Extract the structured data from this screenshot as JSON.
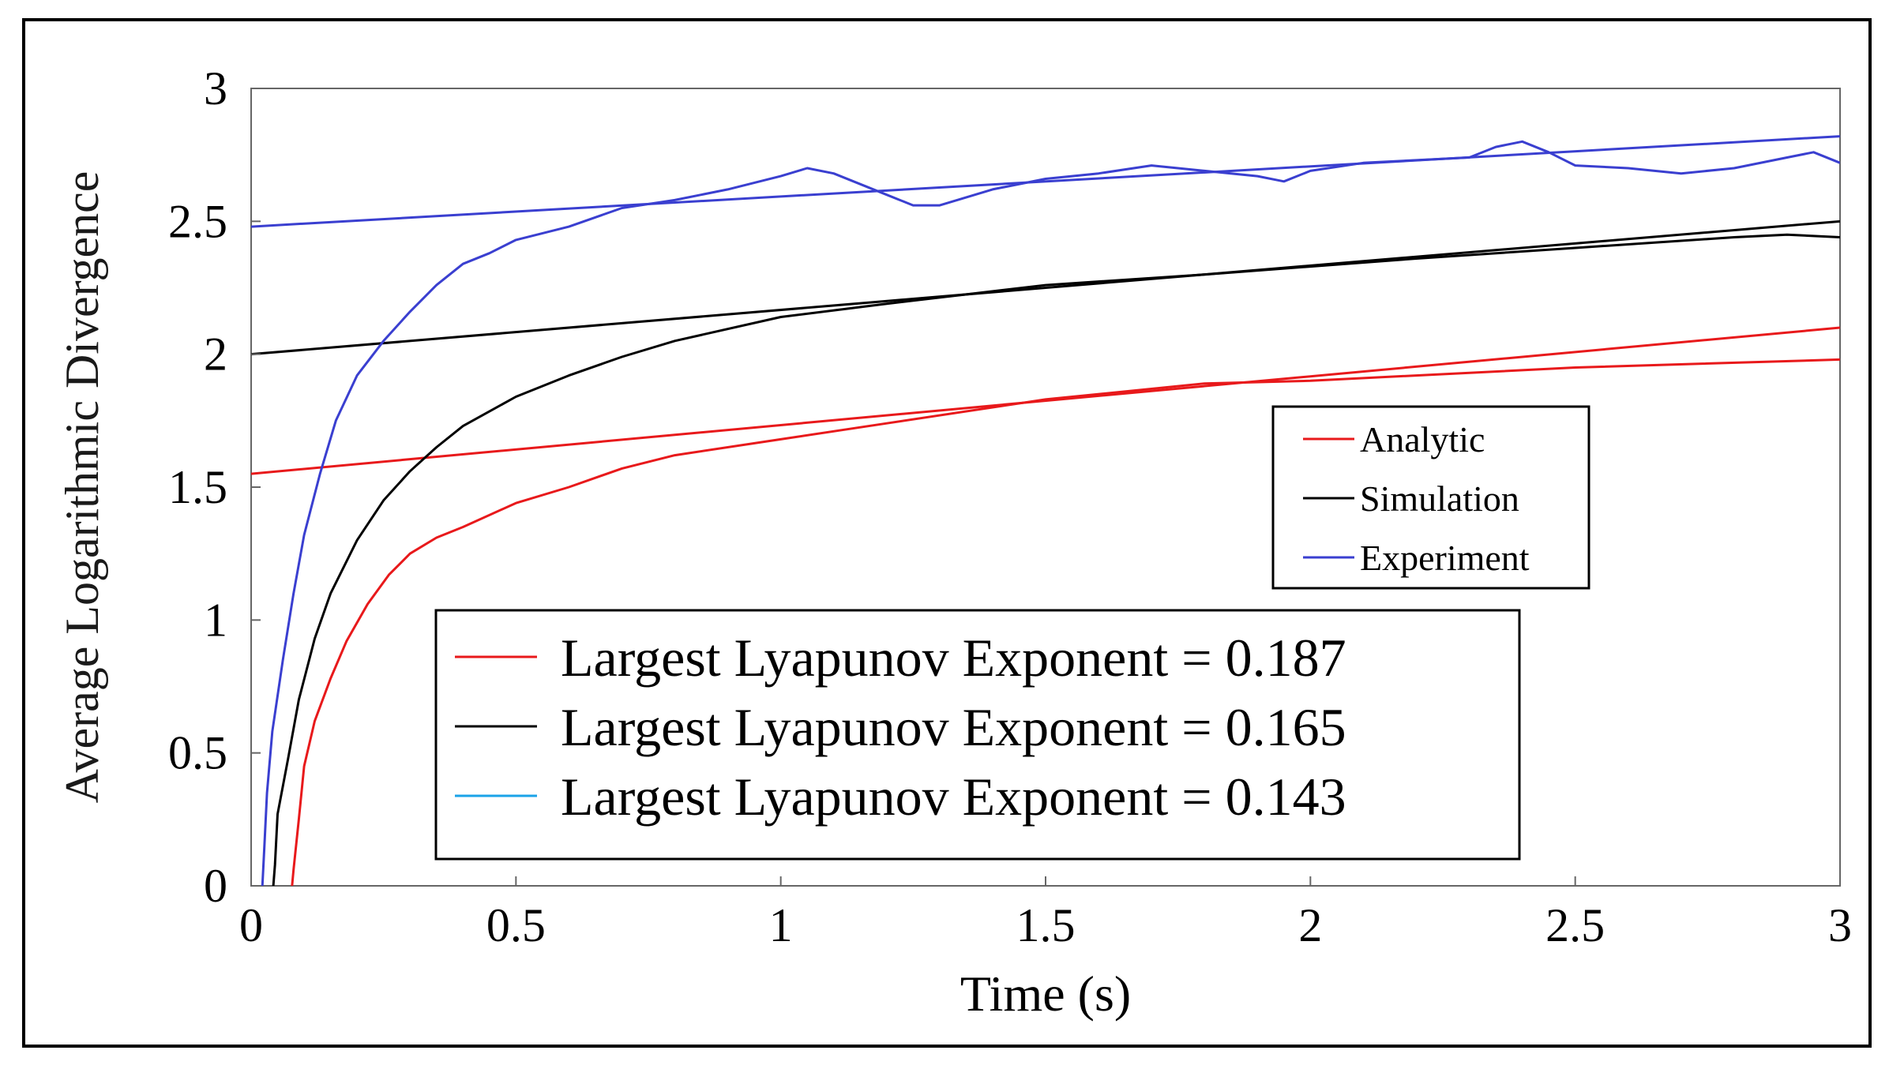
{
  "chart_data": {
    "type": "line",
    "title": "",
    "xlabel": "Time (s)",
    "ylabel": "Average Logarithmic Divergence",
    "xlim": [
      0,
      3
    ],
    "ylim": [
      0,
      3
    ],
    "x_ticks": [
      "0",
      "0.5",
      "1",
      "1.5",
      "2",
      "2.5",
      "3"
    ],
    "y_ticks": [
      "0",
      "0.5",
      "1",
      "1.5",
      "2",
      "2.5",
      "3"
    ],
    "grid": false,
    "series": [
      {
        "name": "Analytic",
        "color": "#e8191b",
        "points": [
          [
            0.075,
            -0.05
          ],
          [
            0.08,
            0.06
          ],
          [
            0.09,
            0.25
          ],
          [
            0.1,
            0.45
          ],
          [
            0.12,
            0.62
          ],
          [
            0.15,
            0.78
          ],
          [
            0.18,
            0.92
          ],
          [
            0.22,
            1.06
          ],
          [
            0.26,
            1.17
          ],
          [
            0.3,
            1.25
          ],
          [
            0.35,
            1.31
          ],
          [
            0.4,
            1.35
          ],
          [
            0.5,
            1.44
          ],
          [
            0.6,
            1.5
          ],
          [
            0.7,
            1.57
          ],
          [
            0.8,
            1.62
          ],
          [
            1.0,
            1.68
          ],
          [
            1.2,
            1.74
          ],
          [
            1.5,
            1.83
          ],
          [
            1.8,
            1.89
          ],
          [
            2.0,
            1.9
          ],
          [
            2.5,
            1.95
          ],
          [
            3.0,
            1.98
          ]
        ]
      },
      {
        "name": "Simulation",
        "color": "#000000",
        "points": [
          [
            0.04,
            -0.05
          ],
          [
            0.045,
            0.08
          ],
          [
            0.05,
            0.27
          ],
          [
            0.07,
            0.48
          ],
          [
            0.09,
            0.7
          ],
          [
            0.12,
            0.93
          ],
          [
            0.15,
            1.1
          ],
          [
            0.2,
            1.3
          ],
          [
            0.25,
            1.45
          ],
          [
            0.3,
            1.56
          ],
          [
            0.35,
            1.65
          ],
          [
            0.4,
            1.73
          ],
          [
            0.5,
            1.84
          ],
          [
            0.6,
            1.92
          ],
          [
            0.7,
            1.99
          ],
          [
            0.8,
            2.05
          ],
          [
            1.0,
            2.14
          ],
          [
            1.2,
            2.19
          ],
          [
            1.5,
            2.26
          ],
          [
            1.8,
            2.3
          ],
          [
            2.0,
            2.33
          ],
          [
            2.2,
            2.36
          ],
          [
            2.5,
            2.4
          ],
          [
            2.8,
            2.44
          ],
          [
            2.9,
            2.45
          ],
          [
            3.0,
            2.44
          ]
        ]
      },
      {
        "name": "Experiment",
        "color": "#3a3fd0",
        "points": [
          [
            0.02,
            -0.05
          ],
          [
            0.025,
            0.15
          ],
          [
            0.03,
            0.35
          ],
          [
            0.04,
            0.58
          ],
          [
            0.06,
            0.85
          ],
          [
            0.08,
            1.1
          ],
          [
            0.1,
            1.32
          ],
          [
            0.13,
            1.55
          ],
          [
            0.16,
            1.75
          ],
          [
            0.2,
            1.92
          ],
          [
            0.25,
            2.05
          ],
          [
            0.3,
            2.16
          ],
          [
            0.35,
            2.26
          ],
          [
            0.4,
            2.34
          ],
          [
            0.45,
            2.38
          ],
          [
            0.5,
            2.43
          ],
          [
            0.6,
            2.48
          ],
          [
            0.7,
            2.55
          ],
          [
            0.8,
            2.58
          ],
          [
            0.9,
            2.62
          ],
          [
            1.0,
            2.67
          ],
          [
            1.05,
            2.7
          ],
          [
            1.1,
            2.68
          ],
          [
            1.2,
            2.6
          ],
          [
            1.25,
            2.56
          ],
          [
            1.3,
            2.56
          ],
          [
            1.4,
            2.62
          ],
          [
            1.5,
            2.66
          ],
          [
            1.6,
            2.68
          ],
          [
            1.7,
            2.71
          ],
          [
            1.8,
            2.69
          ],
          [
            1.9,
            2.67
          ],
          [
            1.95,
            2.65
          ],
          [
            2.0,
            2.69
          ],
          [
            2.1,
            2.72
          ],
          [
            2.2,
            2.73
          ],
          [
            2.3,
            2.74
          ],
          [
            2.35,
            2.78
          ],
          [
            2.4,
            2.8
          ],
          [
            2.45,
            2.76
          ],
          [
            2.5,
            2.71
          ],
          [
            2.6,
            2.7
          ],
          [
            2.7,
            2.68
          ],
          [
            2.8,
            2.7
          ],
          [
            2.9,
            2.74
          ],
          [
            2.95,
            2.76
          ],
          [
            3.0,
            2.72
          ]
        ]
      }
    ],
    "fit_lines": [
      {
        "color": "#e8191b",
        "x": [
          0,
          3
        ],
        "y": [
          1.55,
          2.1
        ]
      },
      {
        "color": "#000000",
        "x": [
          0,
          3
        ],
        "y": [
          2.0,
          2.5
        ]
      },
      {
        "color": "#3a3fd0",
        "x": [
          0,
          3
        ],
        "y": [
          2.48,
          2.82
        ]
      }
    ],
    "legend_series": {
      "position": "center-right",
      "entries": [
        {
          "label": "Analytic",
          "color": "#e8191b"
        },
        {
          "label": "Simulation",
          "color": "#000000"
        },
        {
          "label": "Experiment",
          "color": "#3a3fd0"
        }
      ]
    },
    "legend_exponents": {
      "position": "bottom-center",
      "entries": [
        {
          "label": "Largest Lyapunov Exponent = 0.187",
          "color": "#e8191b"
        },
        {
          "label": "Largest Lyapunov Exponent = 0.165",
          "color": "#000000"
        },
        {
          "label": "Largest Lyapunov Exponent = 0.143",
          "color": "#1aa3e8"
        }
      ]
    }
  }
}
